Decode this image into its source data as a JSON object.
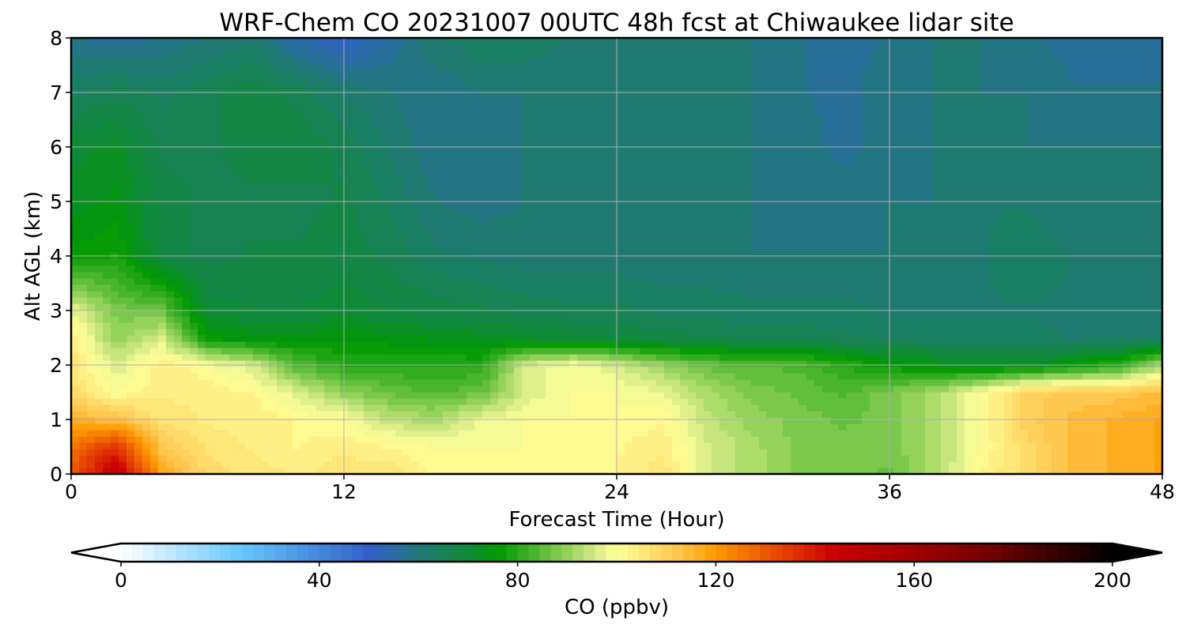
{
  "chart_data": {
    "type": "heatmap",
    "title": "WRF-Chem CO  20231007 00UTC 48h fcst at Chiwaukee lidar site",
    "xlabel": "Forecast Time (Hour)",
    "ylabel": "Alt AGL (km)",
    "xlim": [
      0,
      48
    ],
    "ylim": [
      0,
      8
    ],
    "xticks": [
      0,
      12,
      24,
      36,
      48
    ],
    "yticks": [
      0,
      1,
      2,
      3,
      4,
      5,
      6,
      7,
      8
    ],
    "grid": true,
    "x": [
      0,
      2,
      4,
      6,
      8,
      10,
      12,
      14,
      16,
      18,
      20,
      22,
      24,
      26,
      28,
      30,
      32,
      34,
      36,
      38,
      40,
      42,
      44,
      46,
      48
    ],
    "y": [
      0,
      0.5,
      1,
      1.5,
      2,
      2.5,
      3,
      4,
      5,
      6,
      7,
      8
    ],
    "z": [
      [
        130,
        148,
        118,
        108,
        106,
        104,
        106,
        106,
        102,
        100,
        100,
        100,
        102,
        106,
        96,
        92,
        88,
        88,
        86,
        92,
        102,
        108,
        114,
        116,
        118
      ],
      [
        126,
        136,
        112,
        106,
        104,
        102,
        104,
        102,
        100,
        100,
        100,
        100,
        102,
        104,
        96,
        92,
        88,
        88,
        88,
        92,
        100,
        108,
        114,
        116,
        118
      ],
      [
        116,
        114,
        106,
        104,
        104,
        102,
        100,
        94,
        92,
        98,
        100,
        100,
        100,
        102,
        94,
        90,
        88,
        86,
        88,
        92,
        100,
        110,
        114,
        116,
        118
      ],
      [
        108,
        100,
        104,
        104,
        102,
        96,
        90,
        86,
        84,
        86,
        96,
        100,
        100,
        98,
        92,
        88,
        86,
        84,
        88,
        92,
        100,
        110,
        112,
        112,
        114
      ],
      [
        106,
        96,
        104,
        100,
        96,
        84,
        80,
        80,
        80,
        80,
        96,
        100,
        96,
        90,
        86,
        84,
        84,
        80,
        76,
        74,
        72,
        72,
        76,
        80,
        92
      ],
      [
        104,
        90,
        96,
        76,
        74,
        74,
        75,
        74,
        73,
        72,
        71,
        70,
        69,
        68,
        67,
        66,
        66,
        65,
        64,
        64,
        64,
        63,
        62,
        62,
        63
      ],
      [
        98,
        88,
        86,
        70,
        69,
        69,
        70,
        69,
        68,
        67,
        66,
        65,
        65,
        64,
        64,
        63,
        63,
        63,
        62,
        62,
        62,
        62,
        62,
        61,
        60
      ],
      [
        76,
        78,
        68,
        66,
        67,
        67,
        68,
        66,
        63,
        62,
        61,
        61,
        61,
        60,
        60,
        60,
        60,
        60,
        60,
        61,
        62,
        64,
        62,
        60,
        60
      ],
      [
        72,
        74,
        68,
        66,
        66,
        66,
        67,
        64,
        60,
        59,
        60,
        60,
        60,
        60,
        60,
        60,
        59,
        59,
        60,
        60,
        62,
        62,
        60,
        60,
        60
      ],
      [
        70,
        72,
        66,
        66,
        68,
        68,
        66,
        62,
        58,
        58,
        60,
        60,
        60,
        60,
        60,
        60,
        59,
        57,
        59,
        60,
        60,
        60,
        60,
        60,
        60
      ],
      [
        64,
        66,
        64,
        66,
        68,
        66,
        62,
        60,
        58,
        60,
        60,
        60,
        60,
        60,
        60,
        60,
        58,
        57,
        59,
        60,
        60,
        60,
        58,
        58,
        58
      ],
      [
        58,
        56,
        58,
        60,
        62,
        54,
        50,
        56,
        62,
        64,
        64,
        62,
        60,
        60,
        60,
        60,
        58,
        57,
        58,
        60,
        60,
        58,
        57,
        57,
        57
      ]
    ],
    "colorbar": {
      "label": "CO  (ppbv)",
      "range": [
        0,
        200
      ],
      "extend": "both",
      "ticks": [
        "0",
        "40",
        "80",
        "120",
        "160",
        "200"
      ],
      "tick_values": [
        0,
        40,
        80,
        120,
        160,
        200
      ],
      "anchors": [
        [
          0,
          "#ffffff"
        ],
        [
          24,
          "#66c8ff"
        ],
        [
          50,
          "#3060c8"
        ],
        [
          56,
          "#2a6ea0"
        ],
        [
          60,
          "#207878"
        ],
        [
          70,
          "#0f8a38"
        ],
        [
          76,
          "#009900"
        ],
        [
          84,
          "#50b830"
        ],
        [
          96,
          "#d8ec88"
        ],
        [
          100,
          "#ffff99"
        ],
        [
          112,
          "#ffc850"
        ],
        [
          120,
          "#ff9900"
        ],
        [
          136,
          "#e03000"
        ],
        [
          144,
          "#c80000"
        ],
        [
          160,
          "#a00000"
        ],
        [
          176,
          "#700000"
        ],
        [
          200,
          "#000000"
        ]
      ]
    }
  }
}
